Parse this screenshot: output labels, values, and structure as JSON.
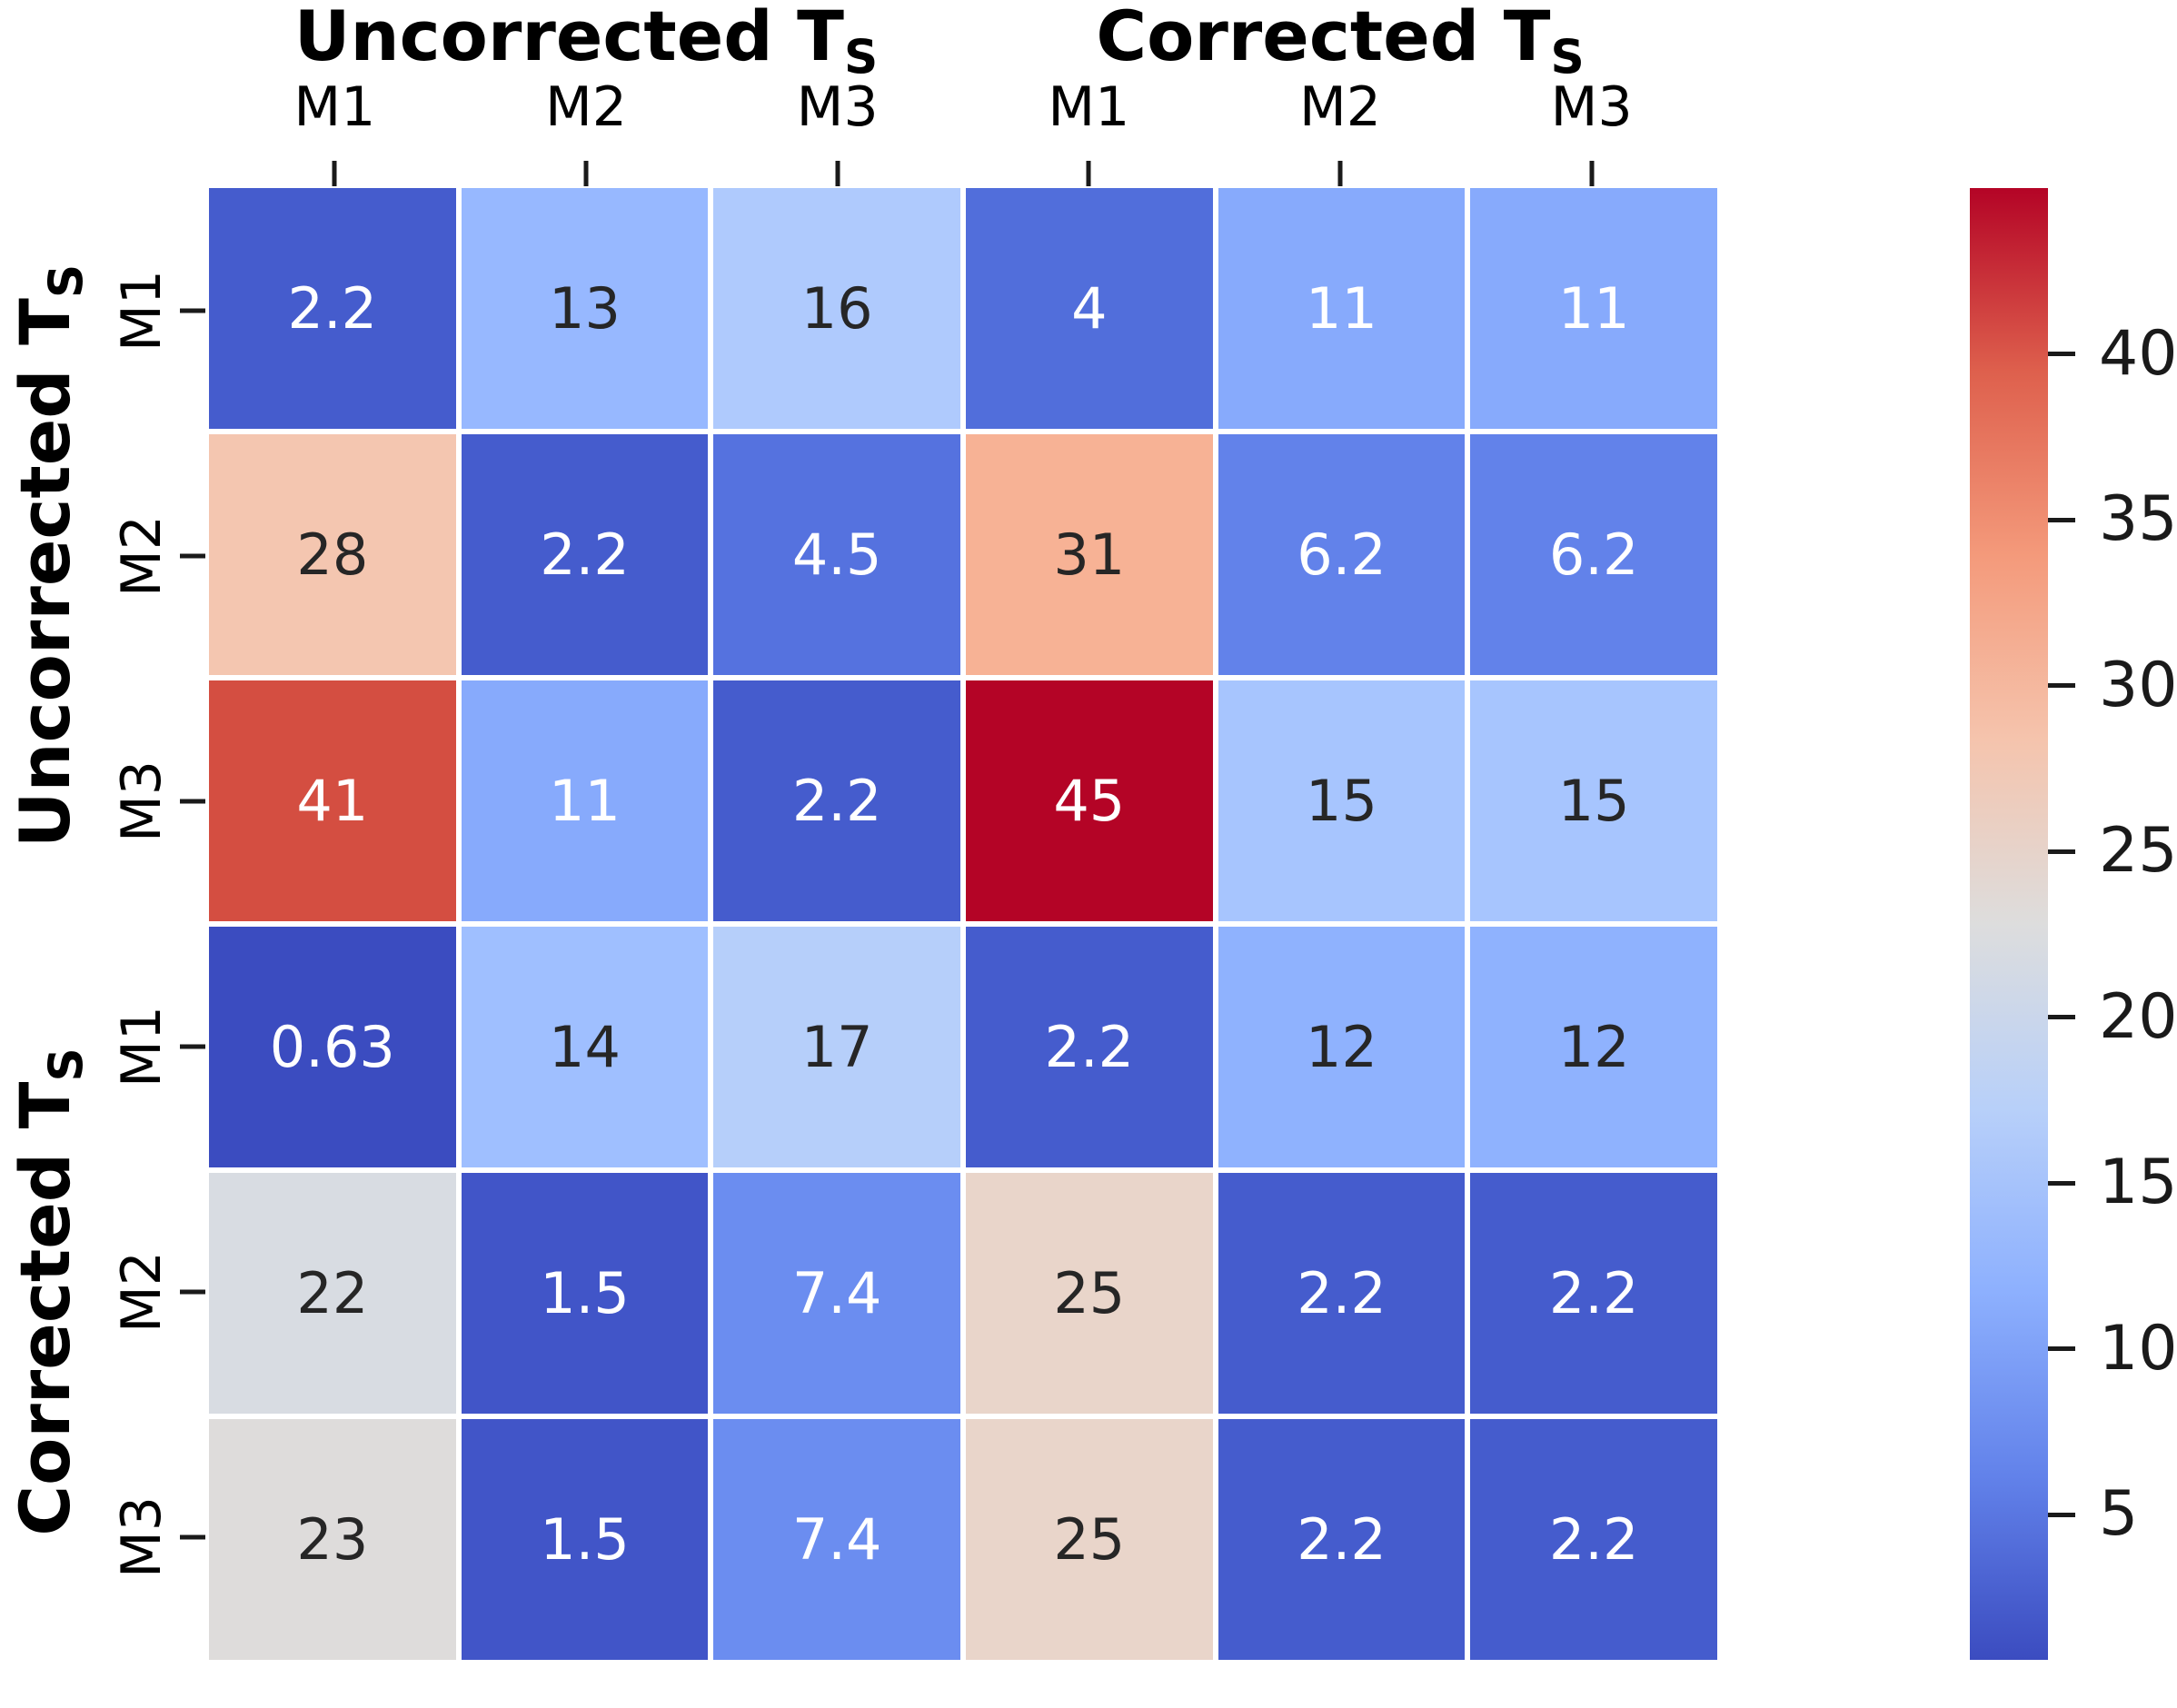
{
  "chart_data": {
    "type": "heatmap",
    "colormap": "coolwarm",
    "background_color": "#ffffff",
    "vmin": 0.63,
    "vmax": 45,
    "top_groups": [
      {
        "label": "Uncorrected T",
        "subscript": "S"
      },
      {
        "label": "Corrected T",
        "subscript": "S"
      }
    ],
    "left_groups": [
      {
        "label": "Uncorrected T",
        "subscript": "S"
      },
      {
        "label": "Corrected T",
        "subscript": "S"
      }
    ],
    "columns": [
      "M1",
      "M2",
      "M3",
      "M1",
      "M2",
      "M3"
    ],
    "rows": [
      "M1",
      "M2",
      "M3",
      "M1",
      "M2",
      "M3"
    ],
    "values": [
      [
        2.2,
        13,
        16,
        4,
        11,
        11
      ],
      [
        28,
        2.2,
        4.5,
        31,
        6.2,
        6.2
      ],
      [
        41,
        11,
        2.2,
        45,
        15,
        15
      ],
      [
        0.63,
        14,
        17,
        2.2,
        12,
        12
      ],
      [
        22,
        1.5,
        7.4,
        25,
        2.2,
        2.2
      ],
      [
        23,
        1.5,
        7.4,
        25,
        2.2,
        2.2
      ]
    ],
    "annotations": [
      [
        "2.2",
        "13",
        "16",
        "4",
        "11",
        "11"
      ],
      [
        "28",
        "2.2",
        "4.5",
        "31",
        "6.2",
        "6.2"
      ],
      [
        "41",
        "11",
        "2.2",
        "45",
        "15",
        "15"
      ],
      [
        "0.63",
        "14",
        "17",
        "2.2",
        "12",
        "12"
      ],
      [
        "22",
        "1.5",
        "7.4",
        "25",
        "2.2",
        "2.2"
      ],
      [
        "23",
        "1.5",
        "7.4",
        "25",
        "2.2",
        "2.2"
      ]
    ],
    "cell_colors": [
      [
        "#455ccd",
        "#97b8ff",
        "#afcafd",
        "#516edb",
        "#87aafc",
        "#87aafc"
      ],
      [
        "#f4c6b0",
        "#455ccd",
        "#5572df",
        "#f7b295",
        "#6282ea",
        "#6282ea"
      ],
      [
        "#d44e41",
        "#87aafc",
        "#455ccd",
        "#b40426",
        "#a7c5fe",
        "#a7c5fe"
      ],
      [
        "#3b4cc0",
        "#9fbfff",
        "#b6cffa",
        "#455ccd",
        "#8fb2fe",
        "#8fb2fe"
      ],
      [
        "#d8dce2",
        "#4155c8",
        "#6b8df0",
        "#e9d5ca",
        "#455ccd",
        "#455ccd"
      ],
      [
        "#dedcdb",
        "#4155c8",
        "#6b8df0",
        "#e9d5ca",
        "#455ccd",
        "#455ccd"
      ]
    ],
    "text_colors": [
      [
        "#ffffff",
        "#262626",
        "#262626",
        "#ffffff",
        "#ffffff",
        "#ffffff"
      ],
      [
        "#262626",
        "#ffffff",
        "#ffffff",
        "#262626",
        "#ffffff",
        "#ffffff"
      ],
      [
        "#ffffff",
        "#ffffff",
        "#ffffff",
        "#ffffff",
        "#262626",
        "#262626"
      ],
      [
        "#ffffff",
        "#262626",
        "#262626",
        "#ffffff",
        "#262626",
        "#262626"
      ],
      [
        "#262626",
        "#ffffff",
        "#ffffff",
        "#262626",
        "#ffffff",
        "#ffffff"
      ],
      [
        "#262626",
        "#ffffff",
        "#ffffff",
        "#262626",
        "#ffffff",
        "#ffffff"
      ]
    ],
    "colorbar": {
      "ticks": [
        40,
        35,
        30,
        25,
        20,
        15,
        10,
        5
      ],
      "gradient_stops": [
        {
          "pos": 0.0,
          "color": "#3b4cc0"
        },
        {
          "pos": 0.125,
          "color": "#6282ea"
        },
        {
          "pos": 0.25,
          "color": "#8db0fe"
        },
        {
          "pos": 0.375,
          "color": "#b8d0f9"
        },
        {
          "pos": 0.5,
          "color": "#dddddd"
        },
        {
          "pos": 0.625,
          "color": "#f5c4ad"
        },
        {
          "pos": 0.75,
          "color": "#f49a7b"
        },
        {
          "pos": 0.875,
          "color": "#de604d"
        },
        {
          "pos": 1.0,
          "color": "#b40426"
        }
      ]
    }
  }
}
